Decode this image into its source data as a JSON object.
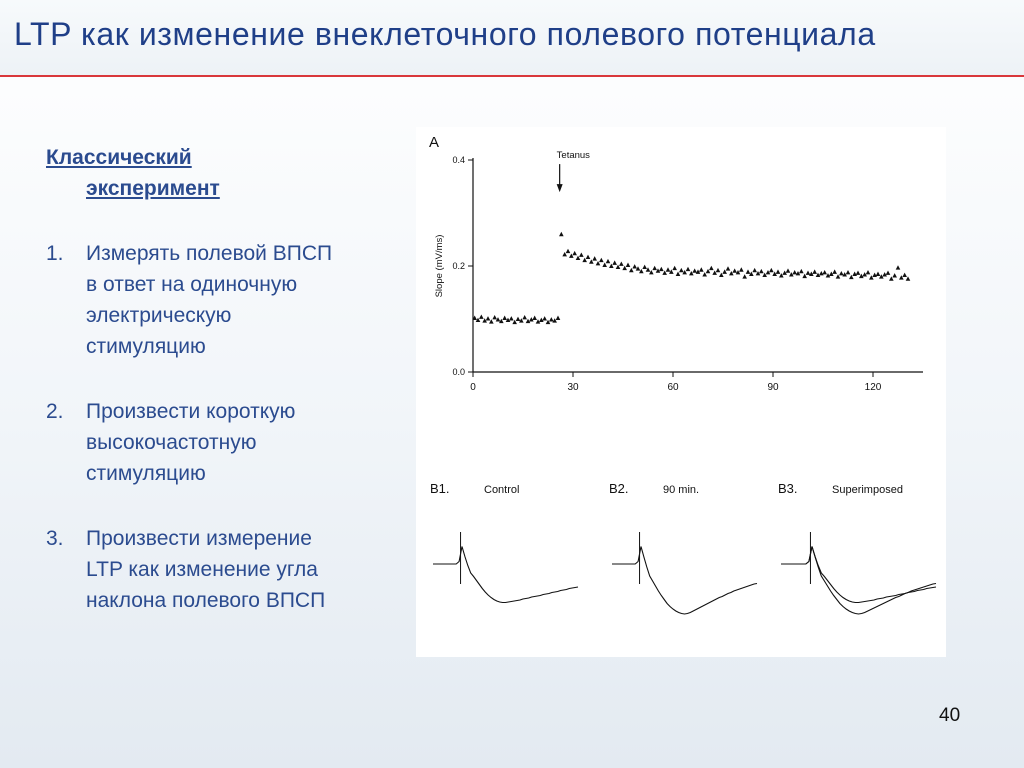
{
  "slide": {
    "title": "LTP как изменение внеклеточного полевого потенциала",
    "page_number": "40"
  },
  "text": {
    "heading_line1": "Классический",
    "heading_line2": "эксперимент",
    "steps": [
      {
        "num": "1.",
        "lines": [
          "Измерять полевой ВПСП",
          "в ответ на одиночную",
          "электрическую",
          "стимуляцию"
        ]
      },
      {
        "num": "2.",
        "lines": [
          "Произвести короткую",
          "высокочастотную",
          "стимуляцию"
        ]
      },
      {
        "num": "3.",
        "lines": [
          "Произвести измерение",
          "LTP как изменение угла",
          "наклона полевого ВПСП"
        ]
      }
    ]
  },
  "chart_data": [
    {
      "type": "scatter",
      "panel_label": "A",
      "ylabel": "Slope (mV/ms)",
      "xlim": [
        0,
        135
      ],
      "ylim": [
        0,
        0.4
      ],
      "x_ticks": [
        0,
        30,
        60,
        90,
        120
      ],
      "y_ticks": [
        0.0,
        0.2,
        0.4
      ],
      "y_tick_labels": [
        "0.0",
        "0.2",
        "0.4"
      ],
      "annotation": {
        "text": "Tetanus",
        "x": 26,
        "y": 0.33
      },
      "series": [
        {
          "x": [
            0.5,
            1.5,
            2.5,
            3.5,
            4.5,
            5.5,
            6.5,
            7.5,
            8.5,
            9.5,
            10.5,
            11.5,
            12.5,
            13.5,
            14.5,
            15.5,
            16.5,
            17.5,
            18.5,
            19.5,
            20.5,
            21.5,
            22.5,
            23.5,
            24.5,
            25.5,
            26.5,
            27.5,
            28.5,
            29.5,
            30.5,
            31.5,
            32.5,
            33.5,
            34.5,
            35.5,
            36.5,
            37.5,
            38.5,
            39.5,
            40.5,
            41.5,
            42.5,
            43.5,
            44.5,
            45.5,
            46.5,
            47.5,
            48.5,
            49.5,
            50.5,
            51.5,
            52.5,
            53.5,
            54.5,
            55.5,
            56.5,
            57.5,
            58.5,
            59.5,
            60.5,
            61.5,
            62.5,
            63.5,
            64.5,
            65.5,
            66.5,
            67.5,
            68.5,
            69.5,
            70.5,
            71.5,
            72.5,
            73.5,
            74.5,
            75.5,
            76.5,
            77.5,
            78.5,
            79.5,
            80.5,
            81.5,
            82.5,
            83.5,
            84.5,
            85.5,
            86.5,
            87.5,
            88.5,
            89.5,
            90.5,
            91.5,
            92.5,
            93.5,
            94.5,
            95.5,
            96.5,
            97.5,
            98.5,
            99.5,
            100.5,
            101.5,
            102.5,
            103.5,
            104.5,
            105.5,
            106.5,
            107.5,
            108.5,
            109.5,
            110.5,
            111.5,
            112.5,
            113.5,
            114.5,
            115.5,
            116.5,
            117.5,
            118.5,
            119.5,
            120.5,
            121.5,
            122.5,
            123.5,
            124.5,
            125.5,
            126.5,
            127.5,
            128.5,
            129.5,
            130.5
          ],
          "y": [
            0.102,
            0.098,
            0.104,
            0.097,
            0.101,
            0.095,
            0.103,
            0.099,
            0.096,
            0.102,
            0.098,
            0.101,
            0.094,
            0.1,
            0.097,
            0.103,
            0.096,
            0.099,
            0.102,
            0.095,
            0.098,
            0.101,
            0.094,
            0.099,
            0.097,
            0.102,
            0.26,
            0.222,
            0.228,
            0.219,
            0.224,
            0.215,
            0.221,
            0.211,
            0.217,
            0.208,
            0.214,
            0.205,
            0.211,
            0.202,
            0.209,
            0.2,
            0.206,
            0.198,
            0.204,
            0.196,
            0.202,
            0.192,
            0.199,
            0.195,
            0.19,
            0.198,
            0.193,
            0.188,
            0.196,
            0.191,
            0.194,
            0.187,
            0.193,
            0.189,
            0.196,
            0.185,
            0.192,
            0.188,
            0.194,
            0.186,
            0.191,
            0.189,
            0.193,
            0.184,
            0.19,
            0.196,
            0.187,
            0.192,
            0.183,
            0.189,
            0.195,
            0.186,
            0.191,
            0.188,
            0.193,
            0.18,
            0.189,
            0.185,
            0.192,
            0.186,
            0.19,
            0.183,
            0.188,
            0.192,
            0.185,
            0.189,
            0.182,
            0.187,
            0.191,
            0.184,
            0.188,
            0.186,
            0.19,
            0.181,
            0.187,
            0.185,
            0.189,
            0.183,
            0.186,
            0.188,
            0.182,
            0.185,
            0.189,
            0.18,
            0.186,
            0.184,
            0.188,
            0.179,
            0.185,
            0.187,
            0.181,
            0.184,
            0.188,
            0.178,
            0.183,
            0.185,
            0.18,
            0.184,
            0.187,
            0.176,
            0.182,
            0.197,
            0.178,
            0.183,
            0.176
          ]
        }
      ]
    },
    {
      "type": "line",
      "panel_label": "B1.",
      "title": "Control",
      "x": [
        0,
        1,
        2,
        3,
        4,
        5,
        6,
        7,
        8,
        9,
        10,
        11,
        12,
        13,
        14,
        15,
        16,
        17,
        18,
        19,
        20,
        21,
        22,
        23,
        24,
        25,
        26,
        27,
        28,
        29,
        30,
        31,
        32,
        33,
        34,
        35,
        36,
        37,
        38,
        39,
        40,
        41,
        42,
        43,
        44,
        45,
        46,
        47,
        48,
        49,
        50
      ],
      "series": [
        {
          "values": [
            0,
            0,
            0,
            0,
            0,
            0,
            0,
            0,
            0,
            0.5,
            3.5,
            1.5,
            -0.3,
            -1.8,
            -2.5,
            -3.3,
            -4.1,
            -4.9,
            -5.6,
            -6.2,
            -6.7,
            -7.1,
            -7.4,
            -7.6,
            -7.7,
            -7.7,
            -7.6,
            -7.5,
            -7.4,
            -7.3,
            -7.2,
            -7.0,
            -6.9,
            -6.8,
            -6.6,
            -6.5,
            -6.4,
            -6.3,
            -6.1,
            -6.0,
            -5.9,
            -5.7,
            -5.6,
            -5.5,
            -5.3,
            -5.2,
            -5.1,
            -4.9,
            -4.8,
            -4.7,
            -4.6
          ]
        }
      ]
    },
    {
      "type": "line",
      "panel_label": "B2.",
      "title": "90 min.",
      "x": [
        0,
        1,
        2,
        3,
        4,
        5,
        6,
        7,
        8,
        9,
        10,
        11,
        12,
        13,
        14,
        15,
        16,
        17,
        18,
        19,
        20,
        21,
        22,
        23,
        24,
        25,
        26,
        27,
        28,
        29,
        30,
        31,
        32,
        33,
        34,
        35,
        36,
        37,
        38,
        39,
        40,
        41,
        42,
        43,
        44,
        45,
        46,
        47,
        48,
        49,
        50
      ],
      "series": [
        {
          "values": [
            0,
            0,
            0,
            0,
            0,
            0,
            0,
            0,
            0,
            0.5,
            3.5,
            1.4,
            -0.6,
            -2.4,
            -3.4,
            -4.4,
            -5.4,
            -6.3,
            -7.1,
            -7.9,
            -8.5,
            -9.0,
            -9.4,
            -9.7,
            -9.9,
            -10.0,
            -9.9,
            -9.7,
            -9.4,
            -9.1,
            -8.8,
            -8.5,
            -8.2,
            -7.9,
            -7.6,
            -7.3,
            -7.0,
            -6.7,
            -6.5,
            -6.2,
            -5.9,
            -5.7,
            -5.4,
            -5.2,
            -5.0,
            -4.8,
            -4.6,
            -4.4,
            -4.2,
            -4.0,
            -3.9
          ]
        }
      ]
    },
    {
      "type": "line",
      "panel_label": "B3.",
      "title": "Superimposed",
      "x": [
        0,
        1,
        2,
        3,
        4,
        5,
        6,
        7,
        8,
        9,
        10,
        11,
        12,
        13,
        14,
        15,
        16,
        17,
        18,
        19,
        20,
        21,
        22,
        23,
        24,
        25,
        26,
        27,
        28,
        29,
        30,
        31,
        32,
        33,
        34,
        35,
        36,
        37,
        38,
        39,
        40,
        41,
        42,
        43,
        44,
        45,
        46,
        47,
        48,
        49,
        50
      ],
      "series": [
        {
          "values": [
            0,
            0,
            0,
            0,
            0,
            0,
            0,
            0,
            0,
            0.5,
            3.5,
            1.5,
            -0.3,
            -1.8,
            -2.5,
            -3.3,
            -4.1,
            -4.9,
            -5.6,
            -6.2,
            -6.7,
            -7.1,
            -7.4,
            -7.6,
            -7.7,
            -7.7,
            -7.6,
            -7.5,
            -7.4,
            -7.3,
            -7.2,
            -7.0,
            -6.9,
            -6.8,
            -6.6,
            -6.5,
            -6.4,
            -6.3,
            -6.1,
            -6.0,
            -5.9,
            -5.7,
            -5.6,
            -5.5,
            -5.3,
            -5.2,
            -5.1,
            -4.9,
            -4.8,
            -4.7,
            -4.6
          ]
        },
        {
          "values": [
            0,
            0,
            0,
            0,
            0,
            0,
            0,
            0,
            0,
            0.5,
            3.5,
            1.4,
            -0.6,
            -2.4,
            -3.4,
            -4.4,
            -5.4,
            -6.3,
            -7.1,
            -7.9,
            -8.5,
            -9.0,
            -9.4,
            -9.7,
            -9.9,
            -10.0,
            -9.9,
            -9.7,
            -9.4,
            -9.1,
            -8.8,
            -8.5,
            -8.2,
            -7.9,
            -7.6,
            -7.3,
            -7.0,
            -6.7,
            -6.5,
            -6.2,
            -5.9,
            -5.7,
            -5.4,
            -5.2,
            -5.0,
            -4.8,
            -4.6,
            -4.4,
            -4.2,
            -4.0,
            -3.9
          ]
        }
      ]
    }
  ]
}
